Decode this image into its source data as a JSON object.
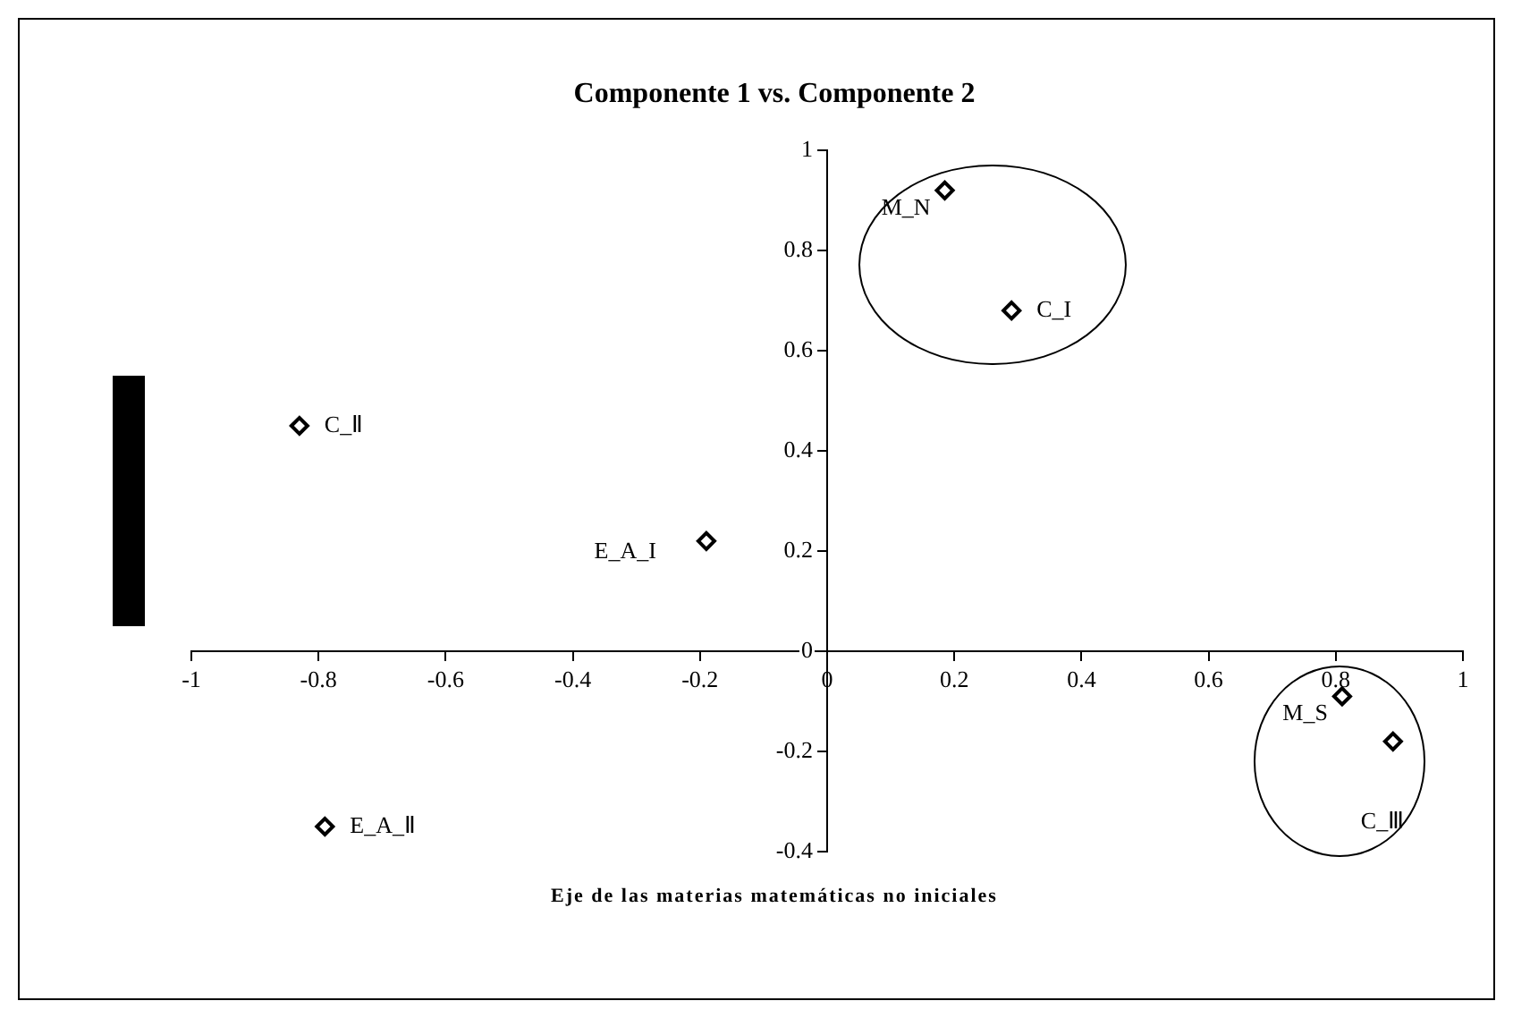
{
  "chart_data": {
    "type": "scatter",
    "title": "Componente 1 vs. Componente 2",
    "xlabel": "Eje de las materias matemáticas no iniciales",
    "x": [
      -0.83,
      -0.19,
      -0.79,
      0.185,
      0.29,
      0.81,
      0.89
    ],
    "series": [
      {
        "color": "#000000",
        "values": [
          0.45,
          0.22,
          -0.35,
          0.92,
          0.68,
          -0.09,
          -0.18
        ]
      }
    ],
    "annotations": [
      {
        "text": "C_Ⅱ",
        "x": -0.83,
        "y": 0.45
      },
      {
        "text": "E_A_I",
        "x": -0.19,
        "y": 0.22
      },
      {
        "text": "E_A_Ⅱ",
        "x": -0.79,
        "y": -0.35
      },
      {
        "text": "M_N",
        "x": 0.185,
        "y": 0.92
      },
      {
        "text": "C_I",
        "x": 0.29,
        "y": 0.68
      },
      {
        "text": "M_S",
        "x": 0.81,
        "y": -0.09
      },
      {
        "text": "C_Ⅲ",
        "x": 0.89,
        "y": -0.18
      }
    ],
    "xlim": [
      -1,
      1
    ],
    "xticks": [
      -1,
      -0.8,
      -0.6,
      -0.4,
      -0.2,
      0,
      0.2,
      0.4,
      0.6,
      0.8,
      1
    ],
    "ylim": [
      -0.4,
      1
    ],
    "yticks": [
      -0.4,
      -0.2,
      0,
      0.2,
      0.4,
      0.6,
      0.8,
      1
    ],
    "grid": false,
    "legend": false,
    "marker": "diamond"
  }
}
